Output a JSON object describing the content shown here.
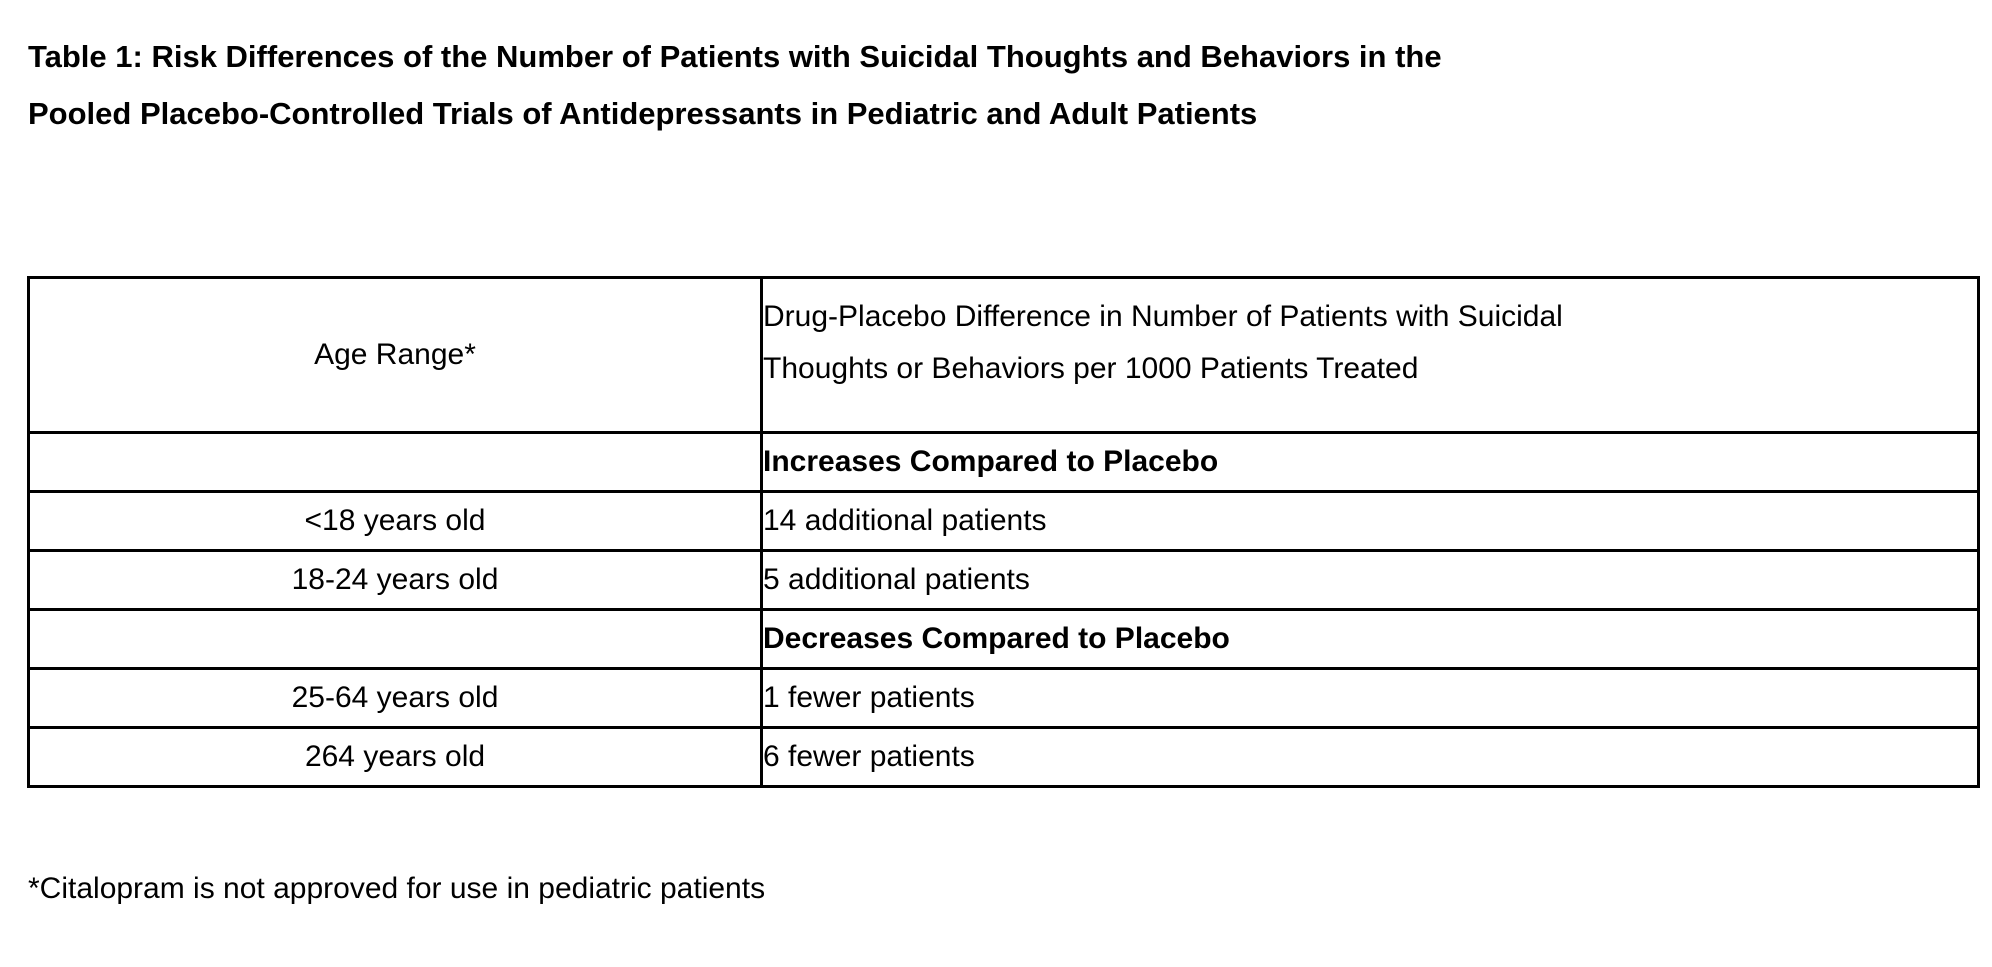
{
  "title": {
    "line1": "Table 1: Risk Differences of the Number of Patients with Suicidal Thoughts and Behaviors in the",
    "line2": "Pooled Placebo-Controlled Trials of Antidepressants in Pediatric and Adult Patients"
  },
  "table": {
    "header": {
      "age_label": "Age Range*",
      "diff_label_line1": "Drug-Placebo Difference in Number of Patients with Suicidal",
      "diff_label_line2": "Thoughts or Behaviors per 1000 Patients Treated"
    },
    "rows": [
      {
        "kind": "section-header",
        "age": "",
        "value": "Increases Compared to Placebo"
      },
      {
        "kind": "data",
        "age": "<18 years old",
        "value": "14 additional patients"
      },
      {
        "kind": "data",
        "age": "18-24 years old",
        "value": "5 additional patients"
      },
      {
        "kind": "section-header",
        "age": "",
        "value": "Decreases Compared to Placebo"
      },
      {
        "kind": "data",
        "age": "25-64 years old",
        "value": "1 fewer patients"
      },
      {
        "kind": "data",
        "age": "264 years old",
        "value": "6 fewer patients"
      }
    ]
  },
  "footnote": "*Citalopram is not approved for use in pediatric patients",
  "colors": {
    "text": "#000000",
    "background": "#ffffff",
    "border": "#000000"
  }
}
